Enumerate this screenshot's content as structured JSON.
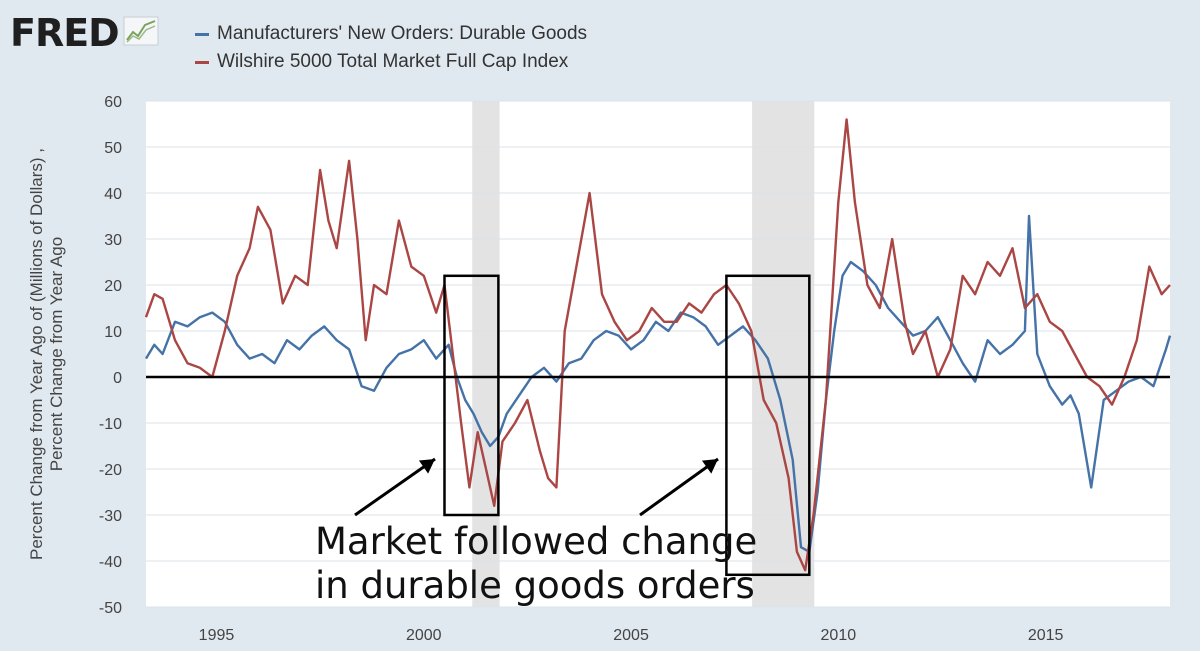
{
  "brand": {
    "logo_text": "FRED"
  },
  "colors": {
    "series1": "#4572a7",
    "series2": "#aa4643",
    "background": "#e1e9f0",
    "plot_bg": "#ffffff",
    "recession": "#e3e3e3",
    "grid": "#dde3ea"
  },
  "annotation": {
    "line1": "Market followed change",
    "line2": "in durable goods orders"
  },
  "chart_data": {
    "type": "line",
    "ylabel_line1": "Percent Change from Year Ago of (Millions of Dollars) ,",
    "ylabel_line2": "Percent Change from Year Ago",
    "ylim": [
      -50,
      60
    ],
    "yticks": [
      -50,
      -40,
      -30,
      -20,
      -10,
      0,
      10,
      20,
      30,
      40,
      50,
      60
    ],
    "xlim": [
      1993.3,
      2018.0
    ],
    "xticks": [
      1995,
      2000,
      2005,
      2010,
      2015
    ],
    "grid": "horizontal",
    "recessions": [
      [
        2001.17,
        2001.83
      ],
      [
        2007.92,
        2009.42
      ]
    ],
    "annotation_boxes": [
      {
        "x0": 2000.5,
        "x1": 2001.8,
        "y0": -30,
        "y1": 22
      },
      {
        "x0": 2007.3,
        "x1": 2009.3,
        "y0": -43,
        "y1": 22
      }
    ],
    "series": [
      {
        "name": "Manufacturers' New Orders: Durable Goods",
        "color": "#4572a7",
        "x": [
          1993.3,
          1993.5,
          1993.7,
          1994.0,
          1994.3,
          1994.6,
          1994.9,
          1995.2,
          1995.5,
          1995.8,
          1996.1,
          1996.4,
          1996.7,
          1997.0,
          1997.3,
          1997.6,
          1997.9,
          1998.2,
          1998.5,
          1998.8,
          1999.1,
          1999.4,
          1999.7,
          2000.0,
          2000.3,
          2000.6,
          2000.8,
          2001.0,
          2001.2,
          2001.4,
          2001.6,
          2001.8,
          2002.0,
          2002.3,
          2002.6,
          2002.9,
          2003.2,
          2003.5,
          2003.8,
          2004.1,
          2004.4,
          2004.7,
          2005.0,
          2005.3,
          2005.6,
          2005.9,
          2006.2,
          2006.5,
          2006.8,
          2007.1,
          2007.4,
          2007.7,
          2008.0,
          2008.3,
          2008.6,
          2008.9,
          2009.1,
          2009.3,
          2009.5,
          2009.7,
          2009.9,
          2010.1,
          2010.3,
          2010.6,
          2010.9,
          2011.2,
          2011.5,
          2011.8,
          2012.1,
          2012.4,
          2012.7,
          2013.0,
          2013.3,
          2013.6,
          2013.9,
          2014.2,
          2014.5,
          2014.6,
          2014.8,
          2015.1,
          2015.4,
          2015.6,
          2015.8,
          2016.1,
          2016.4,
          2016.7,
          2017.0,
          2017.3,
          2017.6,
          2017.9,
          2018.0
        ],
        "values": [
          4,
          7,
          5,
          12,
          11,
          13,
          14,
          12,
          7,
          4,
          5,
          3,
          8,
          6,
          9,
          11,
          8,
          6,
          -2,
          -3,
          2,
          5,
          6,
          8,
          4,
          7,
          0,
          -5,
          -8,
          -12,
          -15,
          -13,
          -8,
          -4,
          0,
          2,
          -1,
          3,
          4,
          8,
          10,
          9,
          6,
          8,
          12,
          10,
          14,
          13,
          11,
          7,
          9,
          11,
          8,
          4,
          -5,
          -18,
          -37,
          -38,
          -25,
          -5,
          10,
          22,
          25,
          23,
          20,
          15,
          12,
          9,
          10,
          13,
          8,
          3,
          -1,
          8,
          5,
          7,
          10,
          35,
          5,
          -2,
          -6,
          -4,
          -8,
          -24,
          -5,
          -3,
          -1,
          0,
          -2,
          6,
          9
        ]
      },
      {
        "name": "Wilshire 5000 Total Market Full Cap Index",
        "color": "#aa4643",
        "x": [
          1993.3,
          1993.5,
          1993.7,
          1994.0,
          1994.3,
          1994.6,
          1994.9,
          1995.2,
          1995.5,
          1995.8,
          1996.0,
          1996.3,
          1996.6,
          1996.9,
          1997.2,
          1997.5,
          1997.7,
          1997.9,
          1998.2,
          1998.4,
          1998.6,
          1998.8,
          1999.1,
          1999.4,
          1999.7,
          2000.0,
          2000.3,
          2000.5,
          2000.7,
          2000.9,
          2001.1,
          2001.3,
          2001.5,
          2001.7,
          2001.9,
          2002.2,
          2002.5,
          2002.8,
          2003.0,
          2003.2,
          2003.4,
          2003.7,
          2004.0,
          2004.3,
          2004.6,
          2004.9,
          2005.2,
          2005.5,
          2005.8,
          2006.1,
          2006.4,
          2006.7,
          2007.0,
          2007.3,
          2007.6,
          2007.9,
          2008.2,
          2008.5,
          2008.8,
          2009.0,
          2009.2,
          2009.4,
          2009.7,
          2010.0,
          2010.2,
          2010.4,
          2010.7,
          2011.0,
          2011.3,
          2011.6,
          2011.8,
          2012.1,
          2012.4,
          2012.7,
          2013.0,
          2013.3,
          2013.6,
          2013.9,
          2014.2,
          2014.5,
          2014.8,
          2015.1,
          2015.4,
          2015.7,
          2016.0,
          2016.3,
          2016.6,
          2016.9,
          2017.2,
          2017.5,
          2017.8,
          2018.0
        ],
        "values": [
          13,
          18,
          17,
          8,
          3,
          2,
          0,
          10,
          22,
          28,
          37,
          32,
          16,
          22,
          20,
          45,
          34,
          28,
          47,
          30,
          8,
          20,
          18,
          34,
          24,
          22,
          14,
          20,
          5,
          -10,
          -24,
          -12,
          -20,
          -28,
          -14,
          -10,
          -5,
          -16,
          -22,
          -24,
          10,
          25,
          40,
          18,
          12,
          8,
          10,
          15,
          12,
          12,
          16,
          14,
          18,
          20,
          16,
          10,
          -5,
          -10,
          -22,
          -38,
          -42,
          -30,
          -5,
          38,
          56,
          38,
          20,
          15,
          30,
          12,
          5,
          10,
          0,
          6,
          22,
          18,
          25,
          22,
          28,
          15,
          18,
          12,
          10,
          5,
          0,
          -2,
          -6,
          0,
          8,
          24,
          18,
          20
        ]
      }
    ]
  }
}
